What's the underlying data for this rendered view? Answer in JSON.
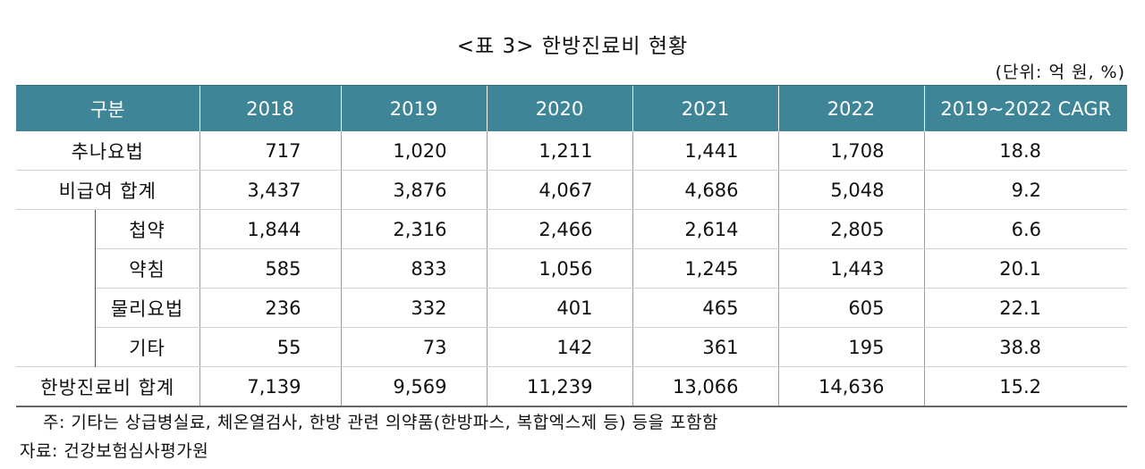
{
  "title": "<표 3> 한방진료비 현황",
  "unit": "(단위: 억 원, %)",
  "header": [
    "구분",
    "2018",
    "2019",
    "2020",
    "2021",
    "2022",
    "2019~2022 CAGR"
  ],
  "rows": [
    {
      "label": "추나요법",
      "values": [
        "717",
        "1,020",
        "1,211",
        "1,441",
        "1,708"
      ],
      "cagr": "18.8"
    },
    {
      "label": "비급여 합계",
      "values": [
        "3,437",
        "3,876",
        "4,067",
        "4,686",
        "5,048"
      ],
      "cagr": "9.2"
    },
    {
      "label": "첩약",
      "values": [
        "1,844",
        "2,316",
        "2,466",
        "2,614",
        "2,805"
      ],
      "cagr": "6.6"
    },
    {
      "label": "약침",
      "values": [
        "585",
        "833",
        "1,056",
        "1,245",
        "1,443"
      ],
      "cagr": "20.1"
    },
    {
      "label": "물리요법",
      "values": [
        "236",
        "332",
        "401",
        "465",
        "605"
      ],
      "cagr": "22.1"
    },
    {
      "label": "기타",
      "values": [
        "55",
        "73",
        "142",
        "361",
        "195"
      ],
      "cagr": "38.8"
    },
    {
      "label": "한방진료비 합계",
      "values": [
        "7,139",
        "9,569",
        "11,239",
        "13,066",
        "14,636"
      ],
      "cagr": "15.2"
    }
  ],
  "note": "주: 기타는 상급병실료, 체온열검사, 한방 관련 의약품(한방파스, 복합엑스제 등) 등을 포함함",
  "source": "자료: 건강보험심사평가원"
}
